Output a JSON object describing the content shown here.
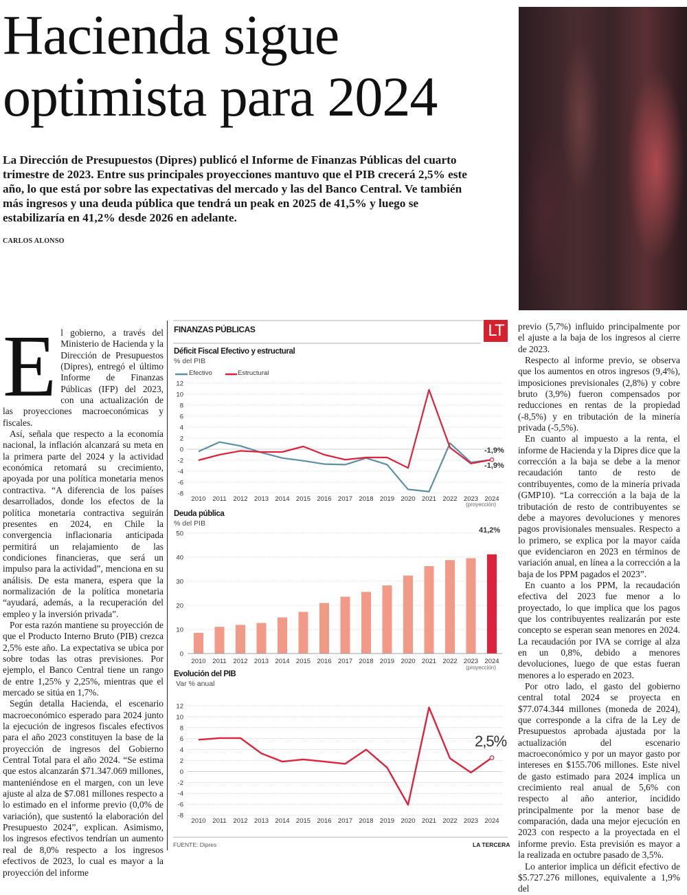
{
  "headline": "Hacienda sigue optimista para 2024",
  "lede": "La Dirección de Presupuestos (Dipres) publicó el Informe de Finanzas Públicas del cuarto trimestre de 2023. Entre sus principales proyecciones mantuvo que el PIB crecerá 2,5% este año, lo que está por sobre las expectativas del mercado y las del Banco Central. Ve también más ingresos y una deuda pública que tendrá un peak en 2025 de 41,5% y luego se estabilizaría en 41,2% desde 2026 en adelante.",
  "byline": "CARLOS ALONSO",
  "body": {
    "dropcap": "E",
    "col1": [
      "l gobierno, a través del Ministerio de Hacienda y la Dirección de Presupuestos (Dipres), entregó el último Informe de Finanzas Públicas (IFP) del 2023, con una actualización de las proyecciones macroeconómicas y fiscales.",
      "Así, señala que respecto a la economía nacional, la inflación alcanzará su meta en la primera parte del 2024 y la actividad económica retomará su crecimiento, apoyada por una política monetaria menos contractiva. “A diferencia de los países desarrollados, donde los efectos de la política monetaria contractiva seguirán presentes en 2024, en Chile la convergencia inflacionaria anticipada permitirá un relajamiento de las condiciones financieras, que será un impulso para la actividad”, menciona en su análisis. De esta manera, espera que la normalización de la política monetaria “ayudará, además, a la recuperación del empleo y la inversión privada”.",
      "Por esta razón mantiene su proyección de que el Producto Interno Bruto (PIB) crezca 2,5% este año. La expectativa se ubica por sobre todas las otras previsiones. Por ejemplo, el Banco Central tiene un rango de entre 1,25% y 2,25%, mientras que el mercado se sitúa en 1,7%.",
      "Según detalla Hacienda, el escenario macroeconómico esperado para 2024 junto la ejecución de ingresos fiscales efectivos para el año 2023 constituyen la base de la proyección de ingresos del Gobierno Central Total para el año 2024. “Se estima que estos alcanzarán $71.347.069 millones, manteniéndose en el margen, con un leve ajuste al alza de $7.081 millones respecto a lo estimado en el informe previo (0,0% de variación), que sustentó la elaboración del Presupuesto 2024”, explican. Asimismo, los ingresos efectivos tendrían un aumento real de 8,0% respecto a los ingresos efectivos de 2023, lo cual es mayor a la proyección del informe"
    ],
    "col3": [
      "previo (5,7%) influido principalmente por el ajuste a la baja de los ingresos al cierre de 2023.",
      "Respecto al informe previo, se observa que los aumentos en otros ingresos (9,4%), imposiciones previsionales (2,8%) y cobre bruto (3,9%) fueron compensados por reducciones en rentas de la propiedad (-8,5%) y en tributación de la minería privada (-5,5%).",
      "En cuanto al impuesto a la renta, el informe de Hacienda y la Dipres dice que la corrección a la baja se debe a la menor recaudación tanto de resto de contribuyentes, como de la minería privada (GMP10). “La corrección a la baja de la tributación de resto de contribuyentes se debe a mayores devoluciones y menores pagos provisionales mensuales. Respecto a lo primero, se explica por la mayor caída que evidenciaron en 2023 en términos de variación anual, en línea a la corrección a la baja de los PPM pagados el 2023”.",
      "En cuanto a los PPM, la recaudación efectiva del 2023 fue menor a lo proyectado, lo que implica que los pagos que los contribuyentes realizarán por este concepto se esperan sean menores en 2024. La recaudación por IVA se corrige al alza en un 0,8%, debido a menores devoluciones, luego de que estas fueran menores a lo esperado en 2023.",
      "Por otro lado, el gasto del gobierno central total 2024 se proyecta en $77.074.344 millones (moneda de 2024), que corresponde a la cifra de la Ley de Presupuestos aprobada ajustada por la actualización del escenario macroeconómico y por un mayor gasto por intereses en $155.706 millones. Este nivel de gasto estimado para 2024 implica un crecimiento real anual de 5,6% con respecto al año anterior, incidido principalmente por la menor base de comparación, dada una mejor ejecución en 2023 con respecto a la proyectada en el informe previo. Esta previsión es mayor a la realizada en octubre pasado de 3,5%.",
      "Lo anterior implica un déficit efectivo de $5.727.276 millones, equivalente a 1,9% del"
    ]
  },
  "infographic": {
    "section": "FINANZAS PÚBLICAS",
    "logo": "LT",
    "source": "FUENTE: Dipres",
    "publisher": "LA TERCERA",
    "colors": {
      "efectivo": "#5b8fa3",
      "estructural": "#e0213a",
      "bar": "#f29a88",
      "bar_highlight": "#e0213a"
    }
  },
  "chart_data": [
    {
      "type": "line",
      "title": "Déficit Fiscal Efectivo y estructural",
      "subtitle": "% del PIB",
      "x": [
        2010,
        2011,
        2012,
        2013,
        2014,
        2015,
        2016,
        2017,
        2018,
        2019,
        2020,
        2021,
        2022,
        2023,
        2024
      ],
      "x_tick_labels": [
        "2010",
        "2011",
        "2012",
        "2013",
        "2014",
        "2015",
        "2016",
        "2017",
        "2018",
        "2019",
        "2020",
        "2021",
        "2022",
        "2023",
        "2024"
      ],
      "x_note": "(proyección)",
      "ylim": [
        -8,
        12
      ],
      "yticks": [
        12,
        10,
        8,
        6,
        4,
        2,
        0,
        -2,
        -4,
        -6,
        -8
      ],
      "grid": true,
      "legend_placement": "top-left",
      "series": [
        {
          "name": "Efectivo",
          "values": [
            -0.4,
            1.3,
            0.6,
            -0.6,
            -1.6,
            -2.1,
            -2.7,
            -2.8,
            -1.6,
            -2.8,
            -7.3,
            -7.7,
            1.1,
            -2.4,
            -1.9
          ]
        },
        {
          "name": "Estructural",
          "values": [
            -2.0,
            -1.0,
            -0.3,
            -0.5,
            -0.5,
            0.5,
            -1.0,
            -1.9,
            -1.5,
            -1.5,
            -3.4,
            10.8,
            0.3,
            -2.6,
            -1.9
          ]
        }
      ],
      "annotations": [
        "-1,9%",
        "-1,9%"
      ]
    },
    {
      "type": "bar",
      "title": "Deuda pública",
      "subtitle": "% del PIB",
      "categories": [
        "2010",
        "2011",
        "2012",
        "2013",
        "2014",
        "2015",
        "2016",
        "2017",
        "2018",
        "2019",
        "2020",
        "2021",
        "2022",
        "2023",
        "2024"
      ],
      "values": [
        8.6,
        11.1,
        11.9,
        12.7,
        15.0,
        17.3,
        21.0,
        23.6,
        25.6,
        28.3,
        32.4,
        36.3,
        38.8,
        39.6,
        41.2
      ],
      "x_note": "(proyección)",
      "ylim": [
        0,
        50
      ],
      "yticks": [
        50,
        40,
        30,
        20,
        10,
        0
      ],
      "grid": true,
      "annotations": [
        "41,2%"
      ]
    },
    {
      "type": "line",
      "title": "Evolución del PIB",
      "subtitle": "Var % anual",
      "x": [
        2010,
        2011,
        2012,
        2013,
        2014,
        2015,
        2016,
        2017,
        2018,
        2019,
        2020,
        2021,
        2022,
        2023,
        2024
      ],
      "x_tick_labels": [
        "2010",
        "2011",
        "2012",
        "2013",
        "2014",
        "2015",
        "2016",
        "2017",
        "2018",
        "2019",
        "2020",
        "2021",
        "2022",
        "2023",
        "2024"
      ],
      "ylim": [
        -8,
        12
      ],
      "yticks": [
        12,
        10,
        8,
        6,
        4,
        2,
        0,
        -2,
        -4,
        -6,
        -8
      ],
      "grid": true,
      "series": [
        {
          "values": [
            5.8,
            6.1,
            6.1,
            3.3,
            1.8,
            2.2,
            1.8,
            1.4,
            4.0,
            0.7,
            -6.1,
            11.7,
            2.4,
            -0.2,
            2.5
          ]
        }
      ],
      "annotations": [
        "2,5%"
      ]
    }
  ]
}
